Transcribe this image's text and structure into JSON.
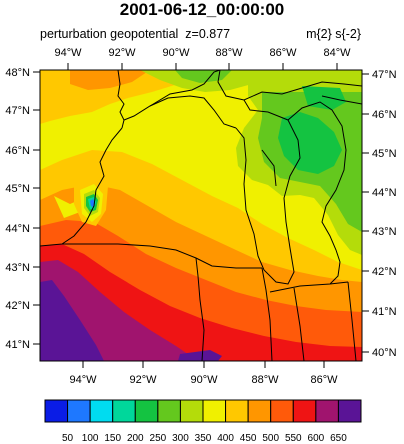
{
  "title": "2001-06-12_00:00:00",
  "field_name": "perturbation geopotential",
  "level": "z=0.877",
  "units": "m{2} s{-2}",
  "axes": {
    "top_lon_labels": [
      "94°W",
      "92°W",
      "90°W",
      "88°W",
      "86°W",
      "84°W"
    ],
    "bottom_lon_labels": [
      "94°W",
      "92°W",
      "90°W",
      "88°W",
      "86°W"
    ],
    "left_lat_labels": [
      "48°N",
      "47°N",
      "46°N",
      "45°N",
      "44°N",
      "43°N",
      "42°N",
      "41°N"
    ],
    "right_lat_labels": [
      "47°N",
      "46°N",
      "45°N",
      "44°N",
      "43°N",
      "42°N",
      "41°N",
      "40°N"
    ]
  },
  "colorbar": {
    "levels": [
      "50",
      "100",
      "150",
      "200",
      "250",
      "300",
      "350",
      "400",
      "450",
      "500",
      "550",
      "600",
      "650"
    ],
    "colors": [
      "#0a1ce6",
      "#1e78ff",
      "#00dcf0",
      "#00d79b",
      "#14c341",
      "#64c81e",
      "#b4dc0a",
      "#f0f000",
      "#ffc800",
      "#ff9600",
      "#ff5a0a",
      "#ef1414",
      "#a0146e",
      "#5a1496"
    ]
  }
}
